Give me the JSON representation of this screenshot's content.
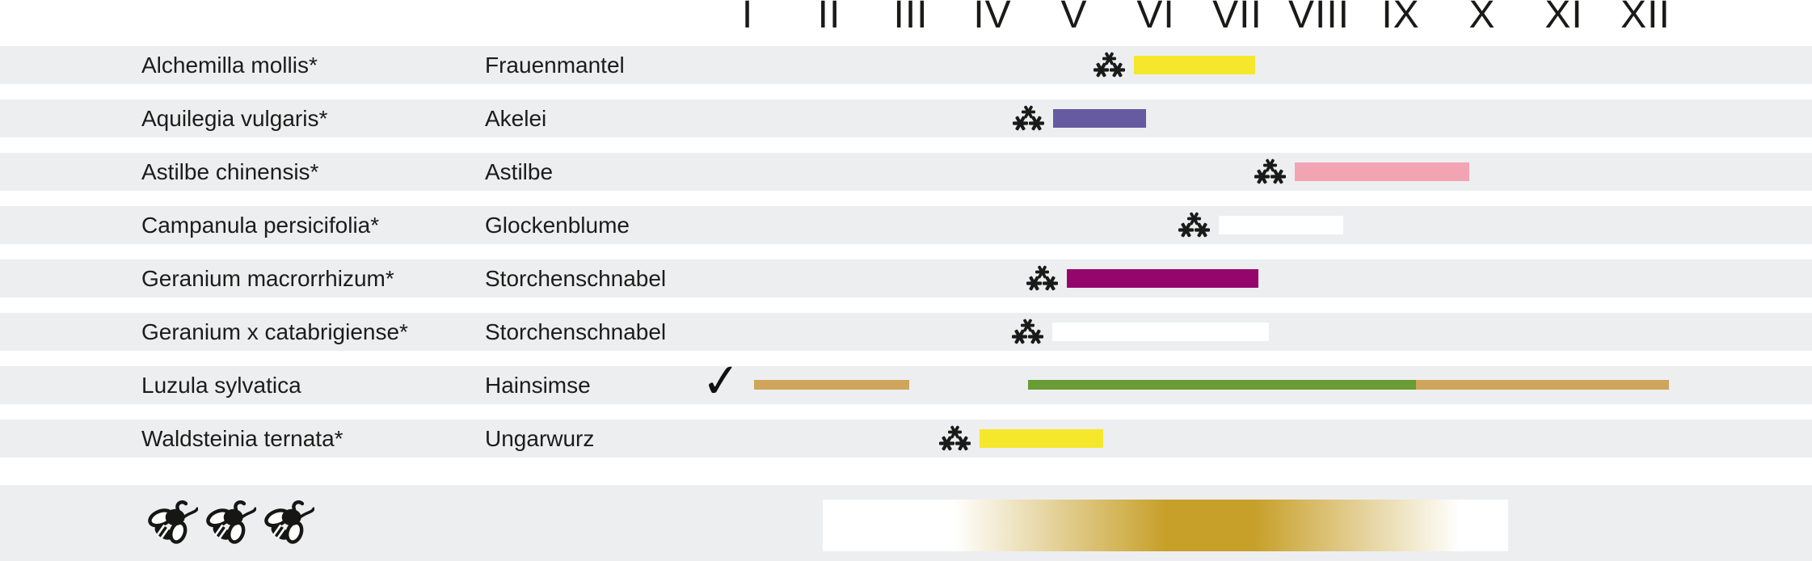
{
  "chart_data": {
    "type": "bar",
    "variant": "horizontal-range bloom-calendar (gantt-style)",
    "x_axis": {
      "unit": "month",
      "tick_labels": [
        "I",
        "II",
        "III",
        "IV",
        "V",
        "VI",
        "VII",
        "VIII",
        "IX",
        "X",
        "XI",
        "XII"
      ],
      "range": [
        0,
        12
      ],
      "grid": false,
      "position": "top"
    },
    "palette": {
      "yellow": "#f5e72b",
      "purple": "#665aa1",
      "pink": "#f2a4b3",
      "white": "#ffffff",
      "magenta": "#94066b",
      "tan": "#cfa55d",
      "green": "#699c35",
      "row_stripe": "#edeef0",
      "text": "#1c1c1a",
      "legend_gold": "#c7a02a"
    },
    "rows": [
      {
        "latin": "Alchemilla mollis*",
        "german": "Frauenmantel",
        "marker": "triple-asterisk",
        "thin_bars": false,
        "bars": [
          {
            "from_month": 5.24,
            "to_month": 6.72,
            "color": "yellow"
          }
        ]
      },
      {
        "latin": "Aquilegia vulgaris*",
        "german": "Akelei",
        "marker": "triple-asterisk",
        "thin_bars": false,
        "bars": [
          {
            "from_month": 4.25,
            "to_month": 5.39,
            "color": "purple"
          }
        ]
      },
      {
        "latin": "Astilbe chinensis*",
        "german": "Astilbe",
        "marker": "triple-asterisk",
        "thin_bars": false,
        "bars": [
          {
            "from_month": 7.21,
            "to_month": 9.35,
            "color": "pink"
          }
        ]
      },
      {
        "latin": "Campanula persicifolia*",
        "german": "Glockenblume",
        "marker": "triple-asterisk",
        "thin_bars": false,
        "bars": [
          {
            "from_month": 6.28,
            "to_month": 7.8,
            "color": "white"
          }
        ]
      },
      {
        "latin": "Geranium macrorrhizum*",
        "german": "Storchenschnabel",
        "marker": "triple-asterisk",
        "thin_bars": false,
        "bars": [
          {
            "from_month": 4.42,
            "to_month": 6.76,
            "color": "magenta"
          }
        ]
      },
      {
        "latin": "Geranium x catabrigiense*",
        "german": "Storchenschnabel",
        "marker": "triple-asterisk",
        "thin_bars": false,
        "bars": [
          {
            "from_month": 4.24,
            "to_month": 6.89,
            "color": "white"
          }
        ]
      },
      {
        "latin": "Luzula sylvatica",
        "german": "Hainsimse",
        "marker": "checkmark",
        "thin_bars": true,
        "bars": [
          {
            "from_month": 0.58,
            "to_month": 2.49,
            "color": "tan"
          },
          {
            "from_month": 3.94,
            "to_month": 8.69,
            "color": "green"
          },
          {
            "from_month": 8.69,
            "to_month": 11.79,
            "color": "tan"
          }
        ]
      },
      {
        "latin": "Waldsteinia ternata*",
        "german": "Ungarwurz",
        "marker": "triple-asterisk",
        "thin_bars": false,
        "bars": [
          {
            "from_month": 3.35,
            "to_month": 4.86,
            "color": "yellow"
          }
        ]
      }
    ],
    "legend_row": {
      "bee_icon_count": 3,
      "gradient_bar": {
        "from_month": 1.43,
        "to_month": 9.82,
        "description": "white to gold to white horizontal gradient",
        "stops": [
          "#ffffff 0%",
          "#ffffff 19%",
          "#c7a02a 50%",
          "#c7a02a 63%",
          "#ffffff 93%",
          "#ffffff 100%"
        ]
      }
    },
    "checkmark_glyph": "✓"
  }
}
